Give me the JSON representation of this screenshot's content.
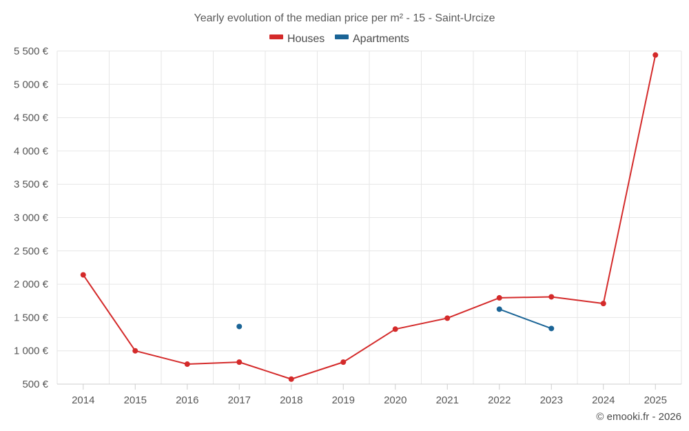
{
  "chart_data": {
    "type": "line",
    "title": "Yearly evolution of the median price per m² - 15 - Saint-Urcize",
    "categories": [
      "2014",
      "2015",
      "2016",
      "2017",
      "2018",
      "2019",
      "2020",
      "2021",
      "2022",
      "2023",
      "2024",
      "2025"
    ],
    "ylim": [
      500,
      5500
    ],
    "yticks": [
      500,
      1000,
      1500,
      2000,
      2500,
      3000,
      3500,
      4000,
      4500,
      5000,
      5500
    ],
    "ytick_labels": [
      "500 €",
      "1 000 €",
      "1 500 €",
      "2 000 €",
      "2 500 €",
      "3 000 €",
      "3 500 €",
      "4 000 €",
      "4 500 €",
      "5 000 €",
      "5 500 €"
    ],
    "grid": true,
    "legend_position": "top-center",
    "series": [
      {
        "name": "Houses",
        "color": "#d42a2a",
        "values": [
          2140,
          1000,
          800,
          830,
          575,
          830,
          1325,
          1490,
          1795,
          1810,
          1710,
          5440
        ]
      },
      {
        "name": "Apartments",
        "color": "#1a6496",
        "values": [
          null,
          null,
          null,
          1365,
          null,
          null,
          null,
          null,
          1625,
          1335,
          null,
          null
        ]
      }
    ]
  },
  "credit": "© emooki.fr - 2026"
}
